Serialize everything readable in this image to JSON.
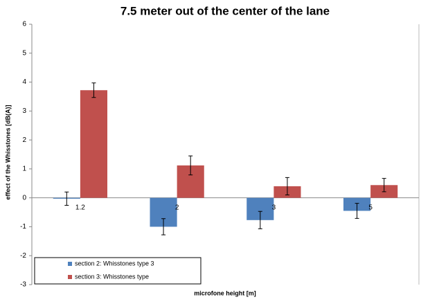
{
  "chart_data": {
    "type": "bar",
    "title": "7.5 meter out of the center of the lane",
    "xlabel": "microfone height [m]",
    "ylabel": "effect of the Whisstones [dB(A)]",
    "categories": [
      "1.2",
      "2",
      "3",
      "5"
    ],
    "series": [
      {
        "name": "section 2: Whisstones type 3",
        "color": "#4f81bd",
        "values": [
          -0.03,
          -1.0,
          -0.77,
          -0.45
        ],
        "errors": [
          0.23,
          0.28,
          0.3,
          0.26
        ]
      },
      {
        "name": "section 3: Whisstones type",
        "color": "#c0504d",
        "values": [
          3.72,
          1.12,
          0.4,
          0.44
        ],
        "errors": [
          0.25,
          0.33,
          0.3,
          0.23
        ]
      }
    ],
    "ylim": [
      -3,
      6
    ],
    "yticks": [
      -3,
      -2,
      -1,
      0,
      1,
      2,
      3,
      4,
      5,
      6
    ],
    "legend": "lower left"
  }
}
